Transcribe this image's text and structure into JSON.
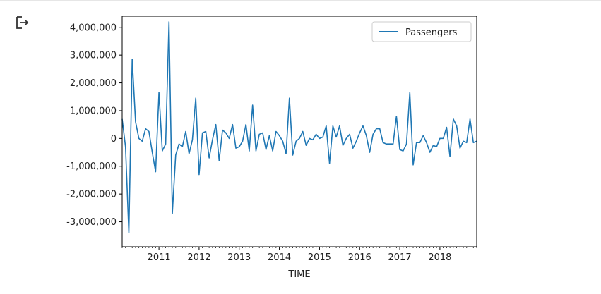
{
  "chart_data": {
    "type": "line",
    "xlabel": "TIME",
    "ylabel": "",
    "title": "",
    "legend": {
      "position": "top-right",
      "entries": [
        "Passengers"
      ]
    },
    "grid": false,
    "ylim": [
      -3900000,
      4400000
    ],
    "xlim": [
      "2010-02",
      "2018-12"
    ],
    "yticks": [
      -3000000,
      -2000000,
      -1000000,
      0,
      1000000,
      2000000,
      3000000,
      4000000
    ],
    "ytick_labels": [
      "-3,000,000",
      "-2,000,000",
      "-1,000,000",
      "0",
      "1,000,000",
      "2,000,000",
      "3,000,000",
      "4,000,000"
    ],
    "xtick_labels": [
      "2011",
      "2012",
      "2013",
      "2014",
      "2015",
      "2016",
      "2017",
      "2018"
    ],
    "series": [
      {
        "name": "Passengers",
        "color": "#1f77b4",
        "x": [
          "2010-02",
          "2010-03",
          "2010-04",
          "2010-05",
          "2010-06",
          "2010-07",
          "2010-08",
          "2010-09",
          "2010-10",
          "2010-11",
          "2010-12",
          "2011-01",
          "2011-02",
          "2011-03",
          "2011-04",
          "2011-05",
          "2011-06",
          "2011-07",
          "2011-08",
          "2011-09",
          "2011-10",
          "2011-11",
          "2011-12",
          "2012-01",
          "2012-02",
          "2012-03",
          "2012-04",
          "2012-05",
          "2012-06",
          "2012-07",
          "2012-08",
          "2012-09",
          "2012-10",
          "2012-11",
          "2012-12",
          "2013-01",
          "2013-02",
          "2013-03",
          "2013-04",
          "2013-05",
          "2013-06",
          "2013-07",
          "2013-08",
          "2013-09",
          "2013-10",
          "2013-11",
          "2013-12",
          "2014-01",
          "2014-02",
          "2014-03",
          "2014-04",
          "2014-05",
          "2014-06",
          "2014-07",
          "2014-08",
          "2014-09",
          "2014-10",
          "2014-11",
          "2014-12",
          "2015-01",
          "2015-02",
          "2015-03",
          "2015-04",
          "2015-05",
          "2015-06",
          "2015-07",
          "2015-08",
          "2015-09",
          "2015-10",
          "2015-11",
          "2015-12",
          "2016-01",
          "2016-02",
          "2016-03",
          "2016-04",
          "2016-05",
          "2016-06",
          "2016-07",
          "2016-08",
          "2016-09",
          "2016-10",
          "2016-11",
          "2016-12",
          "2017-01",
          "2017-02",
          "2017-03",
          "2017-04",
          "2017-05",
          "2017-06",
          "2017-07",
          "2017-08",
          "2017-09",
          "2017-10",
          "2017-11",
          "2017-12",
          "2018-01",
          "2018-02",
          "2018-03",
          "2018-04",
          "2018-05",
          "2018-06",
          "2018-07",
          "2018-08",
          "2018-09",
          "2018-10",
          "2018-11",
          "2018-12"
        ],
        "values": [
          700000,
          -300000,
          -3400000,
          2850000,
          600000,
          0,
          -100000,
          350000,
          250000,
          -500000,
          -1200000,
          1650000,
          -450000,
          -200000,
          4200000,
          -2700000,
          -600000,
          -200000,
          -300000,
          250000,
          -550000,
          -50000,
          1450000,
          -1300000,
          200000,
          250000,
          -700000,
          -50000,
          500000,
          -800000,
          300000,
          200000,
          0,
          500000,
          -350000,
          -300000,
          -100000,
          500000,
          -450000,
          1200000,
          -450000,
          150000,
          200000,
          -400000,
          100000,
          -450000,
          250000,
          100000,
          -100000,
          -550000,
          1450000,
          -600000,
          -100000,
          0,
          250000,
          -250000,
          0,
          -50000,
          150000,
          0,
          50000,
          450000,
          -900000,
          450000,
          50000,
          450000,
          -250000,
          0,
          150000,
          -350000,
          -100000,
          200000,
          450000,
          100000,
          -500000,
          150000,
          350000,
          350000,
          -150000,
          -200000,
          -200000,
          -200000,
          800000,
          -400000,
          -450000,
          -200000,
          1650000,
          -950000,
          -150000,
          -150000,
          100000,
          -150000,
          -500000,
          -250000,
          -300000,
          0,
          0,
          400000,
          -650000,
          700000,
          450000,
          -350000,
          -100000,
          -150000,
          700000,
          -150000,
          -100000
        ]
      }
    ]
  }
}
